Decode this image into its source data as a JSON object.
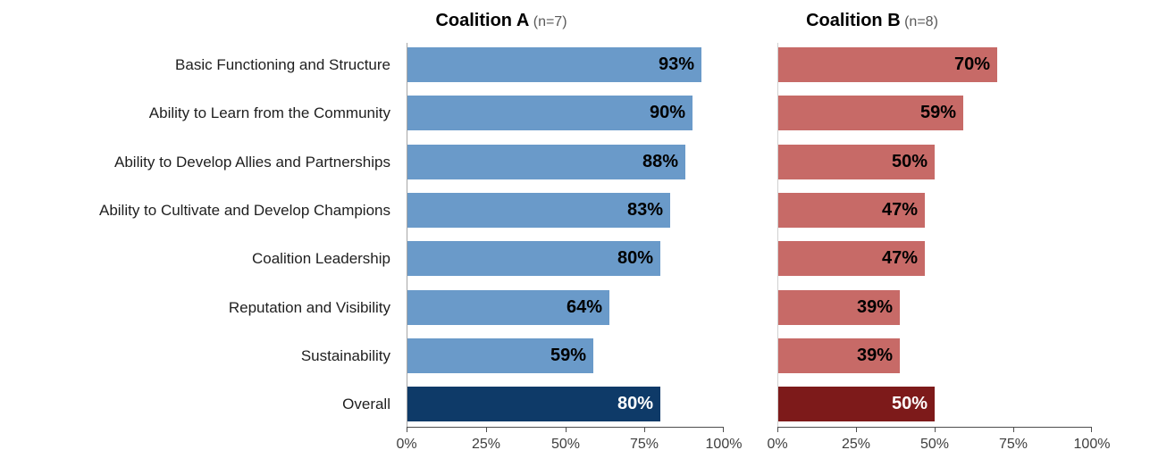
{
  "page": {
    "background": "#FFFFFF"
  },
  "chart_data": [
    {
      "type": "bar",
      "orientation": "horizontal",
      "title": "Coalition A",
      "n_label": "(n=7)",
      "categories": [
        "Basic Functioning and Structure",
        "Ability to Learn from the Community",
        "Ability to Develop Allies and Partnerships",
        "Ability to Cultivate and Develop Champions",
        "Coalition Leadership",
        "Reputation and Visibility",
        "Sustainability",
        "Overall"
      ],
      "values": [
        93,
        90,
        88,
        83,
        80,
        64,
        59,
        80
      ],
      "value_labels": [
        "93%",
        "90%",
        "88%",
        "83%",
        "80%",
        "64%",
        "59%",
        "80%"
      ],
      "bar_color": "#6A9AC9",
      "overall_bar_color": "#0E3A68",
      "value_label_color": "#000000",
      "overall_value_label_color": "#FFFFFF",
      "xlim": [
        0,
        100
      ],
      "x_ticks": [
        "0%",
        "25%",
        "50%",
        "75%",
        "100%"
      ],
      "x_tick_values": [
        0,
        25,
        50,
        75,
        100
      ],
      "grid": false,
      "legend": "none",
      "value_label_position": "inside-end"
    },
    {
      "type": "bar",
      "orientation": "horizontal",
      "title": "Coalition B",
      "n_label": "(n=8)",
      "categories": [
        "Basic Functioning and Structure",
        "Ability to Learn from the Community",
        "Ability to Develop Allies and Partnerships",
        "Ability to Cultivate and Develop Champions",
        "Coalition Leadership",
        "Reputation and Visibility",
        "Sustainability",
        "Overall"
      ],
      "values": [
        70,
        59,
        50,
        47,
        47,
        39,
        39,
        50
      ],
      "value_labels": [
        "70%",
        "59%",
        "50%",
        "47%",
        "47%",
        "39%",
        "39%",
        "50%"
      ],
      "bar_color": "#C76A67",
      "overall_bar_color": "#7D1A1A",
      "value_label_color": "#000000",
      "overall_value_label_color": "#FFFFFF",
      "xlim": [
        0,
        100
      ],
      "x_ticks": [
        "0%",
        "25%",
        "50%",
        "75%",
        "100%"
      ],
      "x_tick_values": [
        0,
        25,
        50,
        75,
        100
      ],
      "grid": false,
      "legend": "none",
      "value_label_position": "inside-end"
    }
  ],
  "axis_style": {
    "line_color": "#4D4D4D",
    "tick_label_color": "#3F3F3F",
    "left_line_color_a": "#A6A6A6",
    "left_line_color_b": "#D0D0D0"
  }
}
